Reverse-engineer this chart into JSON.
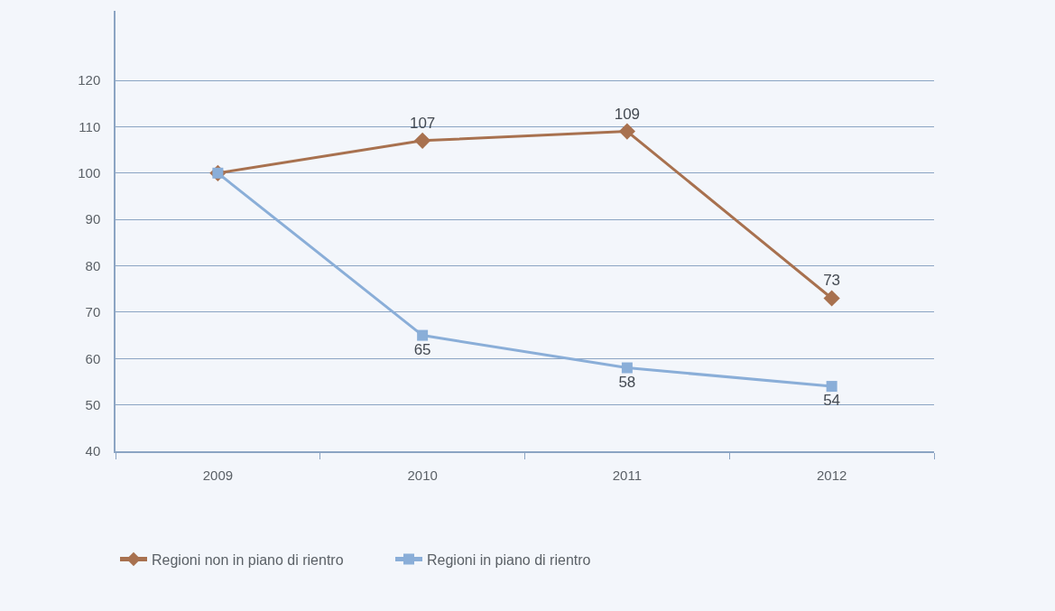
{
  "chart_data": {
    "type": "line",
    "categories": [
      "2009",
      "2010",
      "2011",
      "2012"
    ],
    "series": [
      {
        "name": "Regioni non in piano di rientro",
        "color": "#a8714f",
        "values": [
          100,
          107,
          109,
          73
        ],
        "value_labels": [
          null,
          "107",
          "109",
          "73"
        ],
        "marker": "diamond"
      },
      {
        "name": "Regioni in piano di rientro",
        "color": "#8aaed8",
        "values": [
          100,
          65,
          58,
          54
        ],
        "value_labels": [
          null,
          "65",
          "58",
          "54"
        ],
        "marker": "square"
      }
    ],
    "ylim": [
      40,
      135
    ],
    "yticks": [
      40,
      50,
      60,
      70,
      80,
      90,
      100,
      110,
      120
    ],
    "grid": "y",
    "legend": "bottom left",
    "line_style": "solid"
  }
}
